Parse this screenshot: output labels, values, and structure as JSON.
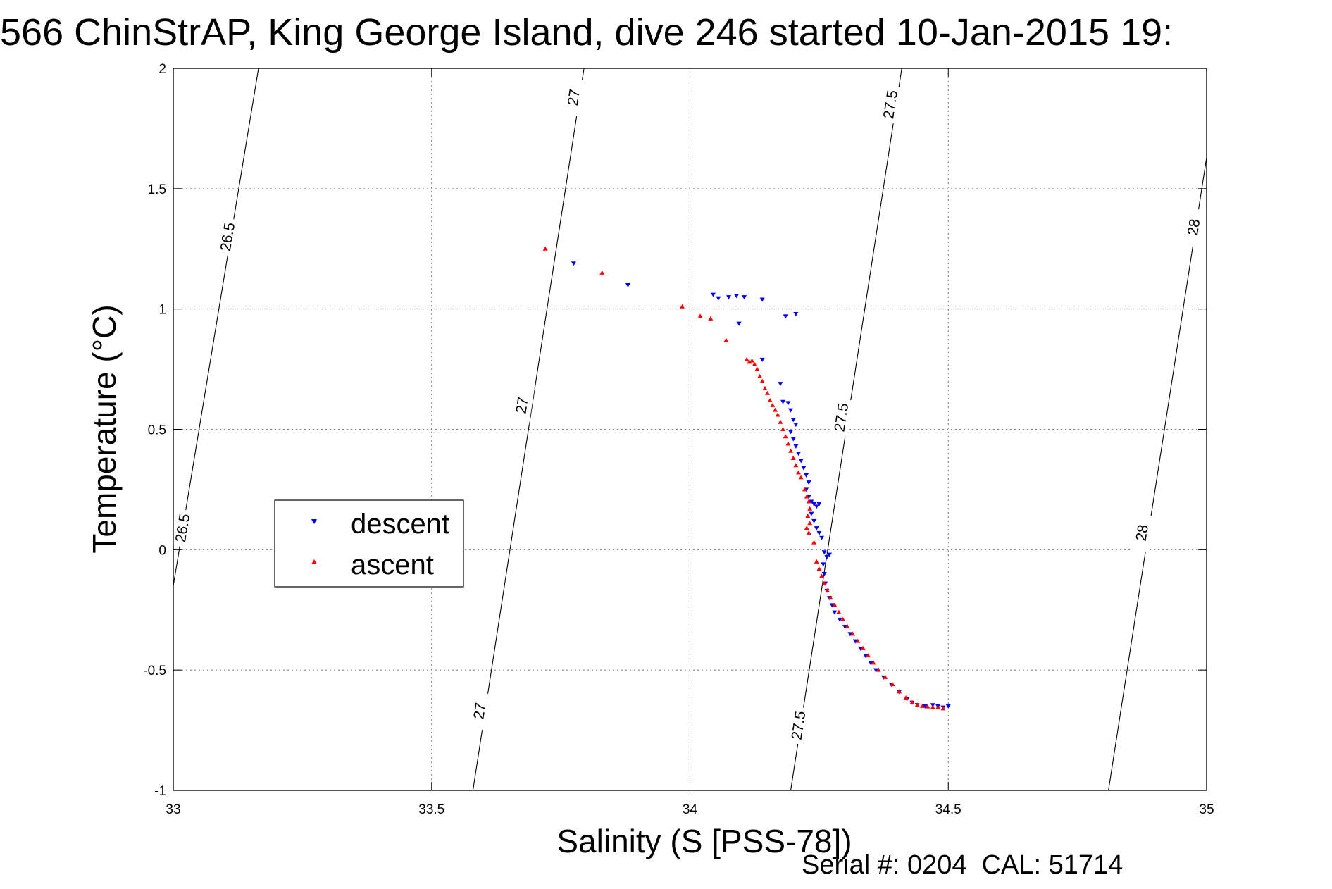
{
  "chart_data": {
    "type": "scatter",
    "title": "566 ChinStrAP, King George Island, dive 246 started 10-Jan-2015 19:",
    "xlabel": "Salinity (S [PSS-78])",
    "ylabel": "Temperature (°C)",
    "xlim": [
      33,
      35
    ],
    "ylim": [
      -1,
      2
    ],
    "xticks": [
      "33",
      "33.5",
      "34",
      "34.5",
      "35"
    ],
    "yticks": [
      "2",
      "1.5",
      "1",
      "0.5",
      "0",
      "-0.5",
      "-1"
    ],
    "grid": true,
    "legend_position": "center-left",
    "footer": "Serial #: 0204  CAL: 51714",
    "density_contours": [
      {
        "label": "26.5",
        "line": [
          [
            33.0,
            -0.15
          ],
          [
            33.165,
            2.0
          ]
        ],
        "labels_at": [
          [
            33.105,
            1.3
          ],
          [
            33.018,
            0.09
          ]
        ]
      },
      {
        "label": "27",
        "line": [
          [
            33.58,
            -1.0
          ],
          [
            33.795,
            2.0
          ]
        ],
        "labels_at": [
          [
            33.775,
            1.88
          ],
          [
            33.675,
            0.6
          ],
          [
            33.593,
            -0.67
          ]
        ]
      },
      {
        "label": "27.5",
        "line": [
          [
            34.195,
            -1.0
          ],
          [
            34.41,
            2.0
          ]
        ],
        "labels_at": [
          [
            34.388,
            1.85
          ],
          [
            34.293,
            0.55
          ],
          [
            34.21,
            -0.73
          ]
        ]
      },
      {
        "label": "28",
        "line": [
          [
            34.81,
            -1.0
          ],
          [
            35.0,
            1.63
          ]
        ],
        "labels_at": [
          [
            34.975,
            1.34
          ],
          [
            34.875,
            0.07
          ]
        ]
      }
    ],
    "series": [
      {
        "name": "descent",
        "color": "#0000ff",
        "marker": "triangle-down",
        "points": [
          [
            33.775,
            1.19
          ],
          [
            33.88,
            1.1
          ],
          [
            34.045,
            1.06
          ],
          [
            34.055,
            1.045
          ],
          [
            34.075,
            1.05
          ],
          [
            34.09,
            1.055
          ],
          [
            34.105,
            1.05
          ],
          [
            34.14,
            1.04
          ],
          [
            34.185,
            0.97
          ],
          [
            34.205,
            0.98
          ],
          [
            34.095,
            0.94
          ],
          [
            34.14,
            0.79
          ],
          [
            34.175,
            0.69
          ],
          [
            34.18,
            0.615
          ],
          [
            34.19,
            0.61
          ],
          [
            34.195,
            0.58
          ],
          [
            34.2,
            0.54
          ],
          [
            34.205,
            0.52
          ],
          [
            34.195,
            0.49
          ],
          [
            34.2,
            0.46
          ],
          [
            34.205,
            0.43
          ],
          [
            34.21,
            0.4
          ],
          [
            34.215,
            0.37
          ],
          [
            34.22,
            0.34
          ],
          [
            34.225,
            0.31
          ],
          [
            34.23,
            0.28
          ],
          [
            34.225,
            0.25
          ],
          [
            34.23,
            0.22
          ],
          [
            34.235,
            0.2
          ],
          [
            34.24,
            0.19
          ],
          [
            34.245,
            0.18
          ],
          [
            34.25,
            0.19
          ],
          [
            34.235,
            0.15
          ],
          [
            34.24,
            0.12
          ],
          [
            34.245,
            0.09
          ],
          [
            34.25,
            0.07
          ],
          [
            34.255,
            0.05
          ],
          [
            34.26,
            -0.01
          ],
          [
            34.265,
            -0.03
          ],
          [
            34.27,
            -0.02
          ],
          [
            34.258,
            -0.06
          ],
          [
            34.26,
            -0.1
          ],
          [
            34.262,
            -0.14
          ],
          [
            34.265,
            -0.17
          ],
          [
            34.27,
            -0.2
          ],
          [
            34.275,
            -0.23
          ],
          [
            34.28,
            -0.26
          ],
          [
            34.29,
            -0.29
          ],
          [
            34.3,
            -0.32
          ],
          [
            34.31,
            -0.35
          ],
          [
            34.32,
            -0.38
          ],
          [
            34.33,
            -0.41
          ],
          [
            34.34,
            -0.44
          ],
          [
            34.35,
            -0.47
          ],
          [
            34.36,
            -0.5
          ],
          [
            34.375,
            -0.53
          ],
          [
            34.39,
            -0.56
          ],
          [
            34.405,
            -0.59
          ],
          [
            34.42,
            -0.62
          ],
          [
            34.43,
            -0.635
          ],
          [
            34.44,
            -0.645
          ],
          [
            34.455,
            -0.65
          ],
          [
            34.47,
            -0.645
          ],
          [
            34.48,
            -0.65
          ],
          [
            34.49,
            -0.655
          ],
          [
            34.5,
            -0.65
          ]
        ]
      },
      {
        "name": "ascent",
        "color": "#ff0000",
        "marker": "triangle-up",
        "points": [
          [
            33.72,
            1.25
          ],
          [
            33.83,
            1.15
          ],
          [
            33.985,
            1.01
          ],
          [
            34.02,
            0.97
          ],
          [
            34.04,
            0.96
          ],
          [
            34.07,
            0.87
          ],
          [
            34.11,
            0.79
          ],
          [
            34.115,
            0.78
          ],
          [
            34.12,
            0.785
          ],
          [
            34.125,
            0.77
          ],
          [
            34.13,
            0.75
          ],
          [
            34.135,
            0.72
          ],
          [
            34.14,
            0.7
          ],
          [
            34.145,
            0.67
          ],
          [
            34.15,
            0.65
          ],
          [
            34.155,
            0.62
          ],
          [
            34.16,
            0.6
          ],
          [
            34.165,
            0.58
          ],
          [
            34.17,
            0.56
          ],
          [
            34.175,
            0.53
          ],
          [
            34.18,
            0.5
          ],
          [
            34.185,
            0.47
          ],
          [
            34.19,
            0.44
          ],
          [
            34.195,
            0.41
          ],
          [
            34.2,
            0.38
          ],
          [
            34.205,
            0.35
          ],
          [
            34.21,
            0.32
          ],
          [
            34.215,
            0.3
          ],
          [
            34.222,
            0.25
          ],
          [
            34.226,
            0.22
          ],
          [
            34.23,
            0.2
          ],
          [
            34.232,
            0.17
          ],
          [
            34.228,
            0.14
          ],
          [
            34.232,
            0.11
          ],
          [
            34.226,
            0.09
          ],
          [
            34.23,
            0.07
          ],
          [
            34.24,
            0.03
          ],
          [
            34.245,
            -0.05
          ],
          [
            34.25,
            -0.08
          ],
          [
            34.255,
            -0.11
          ],
          [
            34.26,
            -0.14
          ],
          [
            34.266,
            -0.17
          ],
          [
            34.272,
            -0.2
          ],
          [
            34.28,
            -0.23
          ],
          [
            34.288,
            -0.26
          ],
          [
            34.296,
            -0.29
          ],
          [
            34.305,
            -0.32
          ],
          [
            34.315,
            -0.35
          ],
          [
            34.325,
            -0.38
          ],
          [
            34.335,
            -0.41
          ],
          [
            34.345,
            -0.44
          ],
          [
            34.355,
            -0.47
          ],
          [
            34.365,
            -0.5
          ],
          [
            34.378,
            -0.53
          ],
          [
            34.392,
            -0.56
          ],
          [
            34.405,
            -0.59
          ],
          [
            34.418,
            -0.615
          ],
          [
            34.43,
            -0.635
          ],
          [
            34.44,
            -0.645
          ],
          [
            34.45,
            -0.65
          ],
          [
            34.46,
            -0.652
          ],
          [
            34.47,
            -0.655
          ],
          [
            34.48,
            -0.655
          ],
          [
            34.49,
            -0.66
          ]
        ]
      }
    ]
  }
}
